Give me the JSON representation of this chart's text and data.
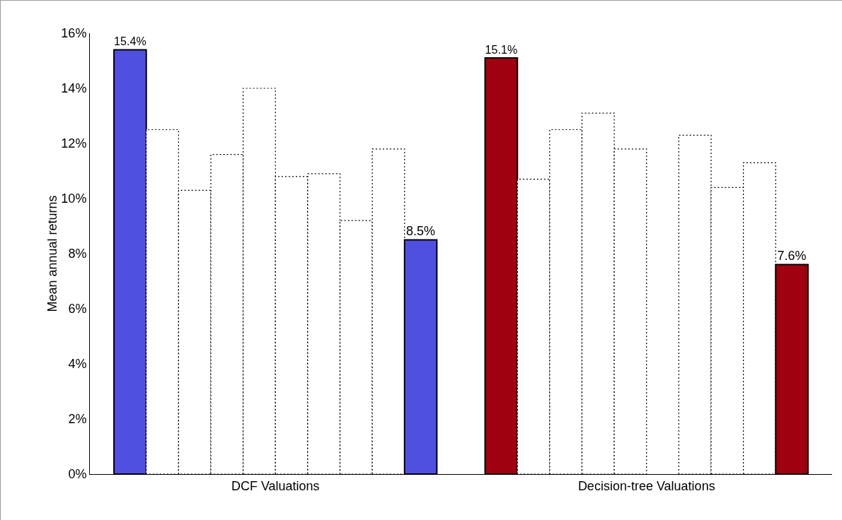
{
  "chart_data": {
    "type": "bar",
    "ylabel": "Mean annual returns",
    "categories": [
      "DCF Valuations",
      "Decision-tree Valuations"
    ],
    "series": [
      {
        "colors": [
          "#5050e0",
          "#a00010"
        ],
        "line_style": "solid",
        "values": [
          15.4,
          15.1
        ],
        "value_labels": [
          "15.4%",
          "15.1%"
        ]
      },
      {
        "color": "#ffffff",
        "line_style": "dotted",
        "values": [
          12.5,
          10.7
        ]
      },
      {
        "color": "#ffffff",
        "line_style": "dotted",
        "values": [
          10.3,
          12.5
        ]
      },
      {
        "color": "#ffffff",
        "line_style": "dotted",
        "values": [
          11.6,
          13.1
        ]
      },
      {
        "color": "#ffffff",
        "line_style": "dotted",
        "values": [
          14.0,
          11.8
        ]
      },
      {
        "color": "#ffffff",
        "line_style": "dotted",
        "values": [
          10.8,
          null
        ]
      },
      {
        "color": "#ffffff",
        "line_style": "dotted",
        "values": [
          10.9,
          12.3
        ]
      },
      {
        "color": "#ffffff",
        "line_style": "dotted",
        "values": [
          9.2,
          10.4
        ]
      },
      {
        "color": "#ffffff",
        "line_style": "dotted",
        "values": [
          11.8,
          11.3
        ]
      },
      {
        "colors": [
          "#5050e0",
          "#a00010"
        ],
        "line_style": "solid",
        "values": [
          8.5,
          7.6
        ],
        "value_labels": [
          "8.5%",
          "7.6%"
        ]
      }
    ],
    "ylim": [
      0,
      16
    ],
    "yticks": [
      {
        "value": 0,
        "label": "0%"
      },
      {
        "value": 2,
        "label": "2%"
      },
      {
        "value": 4,
        "label": "4%"
      },
      {
        "value": 6,
        "label": "6%"
      },
      {
        "value": 8,
        "label": "8%"
      },
      {
        "value": 10,
        "label": "10%"
      },
      {
        "value": 12,
        "label": "12%"
      },
      {
        "value": 14,
        "label": "14%"
      },
      {
        "value": 16,
        "label": "16%"
      }
    ],
    "grid": false
  }
}
